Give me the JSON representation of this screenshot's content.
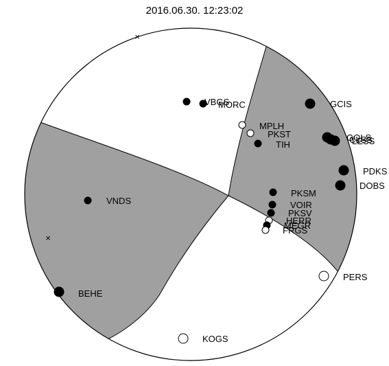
{
  "title": "2016.06.30. 12:23:02",
  "colors": {
    "shaded": "#a0a0a0",
    "outline": "#000000",
    "background": "#ffffff"
  },
  "axes": [
    {
      "name": "x-mark-top",
      "symbol": "×"
    },
    {
      "name": "x-mark-left",
      "symbol": "×"
    }
  ],
  "stations": [
    {
      "name": "GCIS",
      "polarity": "compression",
      "size": "large"
    },
    {
      "name": "VBGS",
      "polarity": "compression",
      "size": "small"
    },
    {
      "name": "MORC",
      "polarity": "compression",
      "size": "small"
    },
    {
      "name": "MPLH",
      "polarity": "dilatation",
      "size": "small"
    },
    {
      "name": "PKST",
      "polarity": "dilatation",
      "size": "small"
    },
    {
      "name": "TIH",
      "polarity": "compression",
      "size": "small"
    },
    {
      "name": "GOLS",
      "polarity": "compression",
      "size": "large"
    },
    {
      "name": "CLSS",
      "polarity": "compression",
      "size": "large"
    },
    {
      "name": "LESS",
      "polarity": "compression",
      "size": "large"
    },
    {
      "name": "PDKS",
      "polarity": "compression",
      "size": "large"
    },
    {
      "name": "DOBS",
      "polarity": "compression",
      "size": "large"
    },
    {
      "name": "PKSM",
      "polarity": "compression",
      "size": "small"
    },
    {
      "name": "VOIR",
      "polarity": "compression",
      "size": "small"
    },
    {
      "name": "PKSV",
      "polarity": "compression",
      "size": "small"
    },
    {
      "name": "HERR",
      "polarity": "dilatation",
      "size": "small"
    },
    {
      "name": "MEGR",
      "polarity": "compression",
      "size": "small"
    },
    {
      "name": "FRGS",
      "polarity": "dilatation",
      "size": "small"
    },
    {
      "name": "VNDS",
      "polarity": "compression",
      "size": "small"
    },
    {
      "name": "BEHE",
      "polarity": "compression",
      "size": "large"
    },
    {
      "name": "PERS",
      "polarity": "dilatation",
      "size": "large"
    },
    {
      "name": "KOGS",
      "polarity": "dilatation",
      "size": "large"
    }
  ]
}
